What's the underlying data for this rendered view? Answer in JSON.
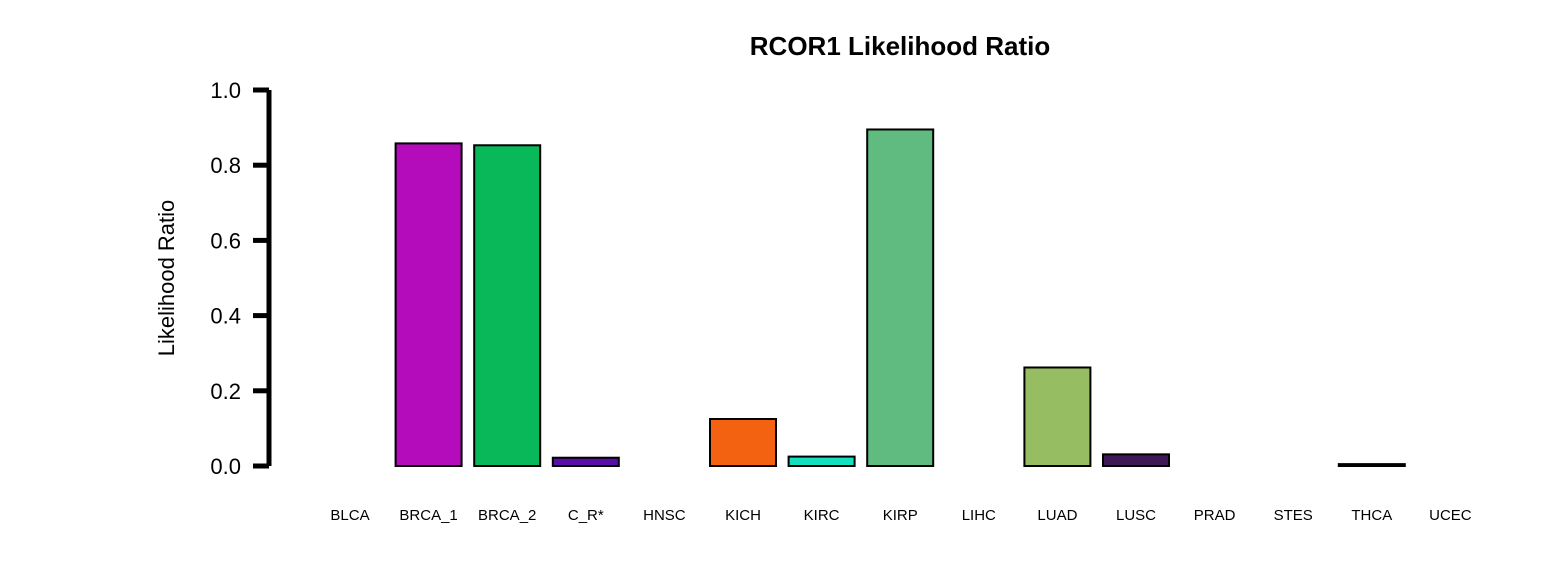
{
  "chart_data": {
    "type": "bar",
    "title": "RCOR1 Likelihood Ratio",
    "xlabel": "",
    "ylabel": "Likelihood Ratio",
    "ylim": [
      0,
      1.0
    ],
    "yticks": [
      "0.0",
      "0.2",
      "0.4",
      "0.6",
      "0.8",
      "1.0"
    ],
    "grid": false,
    "categories": [
      "BLCA",
      "BRCA_1",
      "BRCA_2",
      "C_R*",
      "HNSC",
      "KICH",
      "KIRC",
      "KIRP",
      "LIHC",
      "LUAD",
      "LUSC",
      "PRAD",
      "STES",
      "THCA",
      "UCEC"
    ],
    "values": [
      0.0,
      0.858,
      0.853,
      0.022,
      0.0,
      0.125,
      0.025,
      0.895,
      0.0,
      0.262,
      0.031,
      0.0,
      0.0,
      0.005,
      0.0
    ],
    "colors": [
      "#000000",
      "#B40BBB",
      "#08B859",
      "#5A0EA8",
      "#000000",
      "#F26210",
      "#12E0BF",
      "#5FBB80",
      "#000000",
      "#97BD62",
      "#3E1857",
      "#000000",
      "#000000",
      "#000000",
      "#000000"
    ]
  }
}
